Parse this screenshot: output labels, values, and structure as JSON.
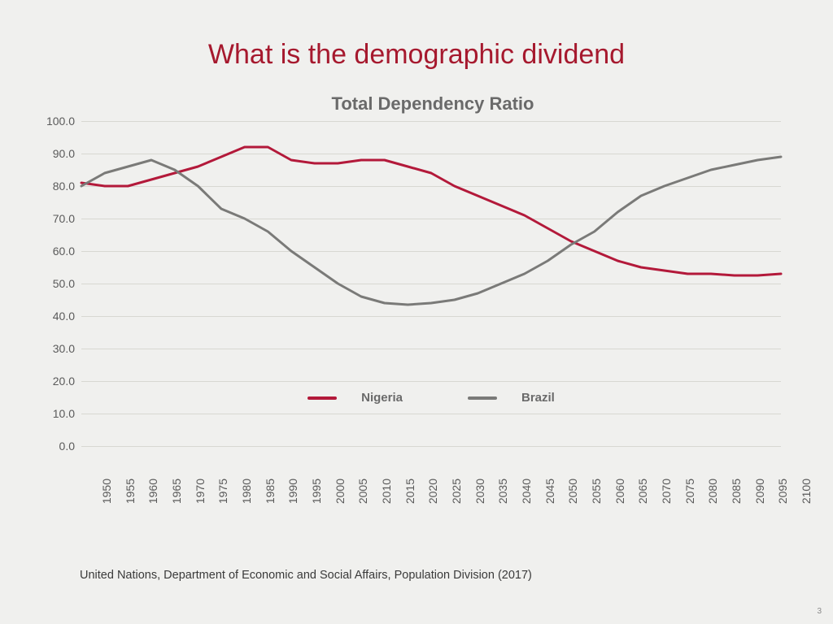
{
  "title": "What is the demographic dividend",
  "chart": {
    "type": "line",
    "title": "Total Dependency Ratio",
    "title_fontsize": 22,
    "title_color": "#6a6a6a",
    "background_color": "#f0f0ee",
    "grid_color": "#d7d7d2",
    "axis_text_color": "#5a5a5a",
    "axis_fontsize": 14,
    "ylim": [
      0,
      100
    ],
    "ytick_step": 10,
    "yticks": [
      0.0,
      10.0,
      20.0,
      30.0,
      40.0,
      50.0,
      60.0,
      70.0,
      80.0,
      90.0,
      100.0
    ],
    "xlim": [
      1950,
      2100
    ],
    "xtick_step": 5,
    "xticks": [
      1950,
      1955,
      1960,
      1965,
      1970,
      1975,
      1980,
      1985,
      1990,
      1995,
      2000,
      2005,
      2010,
      2015,
      2020,
      2025,
      2030,
      2035,
      2040,
      2045,
      2050,
      2055,
      2060,
      2065,
      2070,
      2075,
      2080,
      2085,
      2090,
      2095,
      2100
    ],
    "line_width": 3,
    "series": [
      {
        "name": "Nigeria",
        "color": "#b3193a",
        "x": [
          1950,
          1955,
          1960,
          1965,
          1970,
          1975,
          1980,
          1985,
          1990,
          1995,
          2000,
          2005,
          2010,
          2015,
          2020,
          2025,
          2030,
          2035,
          2040,
          2045,
          2050,
          2055,
          2060,
          2065,
          2070,
          2075,
          2080,
          2085,
          2090,
          2095,
          2100
        ],
        "y": [
          81,
          80,
          80,
          82,
          84,
          86,
          89,
          92,
          92,
          88,
          87,
          87,
          88,
          88,
          86,
          84,
          80,
          77,
          74,
          71,
          67,
          63,
          60,
          57,
          55,
          54,
          53,
          53,
          52.5,
          52.5,
          53
        ]
      },
      {
        "name": "Brazil",
        "color": "#7a7a78",
        "x": [
          1950,
          1955,
          1960,
          1965,
          1970,
          1975,
          1980,
          1985,
          1990,
          1995,
          2000,
          2005,
          2010,
          2015,
          2020,
          2025,
          2030,
          2035,
          2040,
          2045,
          2050,
          2055,
          2060,
          2065,
          2070,
          2075,
          2080,
          2085,
          2090,
          2095,
          2100
        ],
        "y": [
          80,
          84,
          86,
          88,
          85,
          80,
          73,
          70,
          66,
          60,
          55,
          50,
          46,
          44,
          43.5,
          44,
          45,
          47,
          50,
          53,
          57,
          62,
          66,
          72,
          77,
          80,
          82.5,
          85,
          86.5,
          88,
          89
        ]
      }
    ],
    "legend": {
      "items": [
        {
          "label": "Nigeria",
          "swatch_color": "#b3193a"
        },
        {
          "label": "Brazil",
          "swatch_color": "#7a7a78"
        }
      ],
      "position_y_value": 17
    }
  },
  "source": "United Nations, Department of Economic and Social Affairs, Population Division (2017)",
  "page_number": "3",
  "colors": {
    "title_color": "#a6192e",
    "slide_background": "#f0f0ee"
  }
}
